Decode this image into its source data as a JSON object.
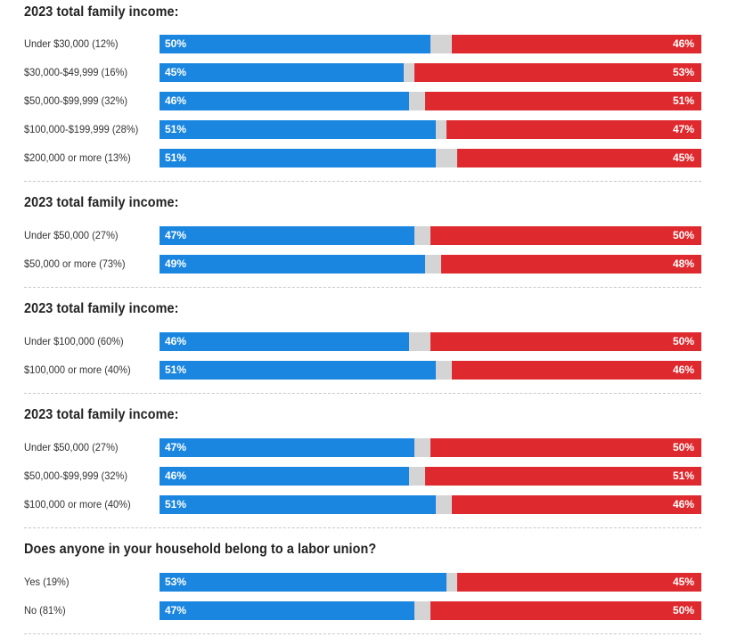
{
  "colors": {
    "dem": "#1a86e0",
    "rep": "#de2a2e",
    "other": "#d4d4d4"
  },
  "chart_data": [
    {
      "type": "bar",
      "title": "2023 total family income:",
      "categories": [
        "Under $30,000 (12%)",
        "$30,000-$49,999 (16%)",
        "$50,000-$99,999 (32%)",
        "$100,000-$199,999 (28%)",
        "$200,000 or more (13%)"
      ],
      "series": [
        {
          "name": "blue",
          "values": [
            50,
            45,
            46,
            51,
            51
          ]
        },
        {
          "name": "red",
          "values": [
            46,
            53,
            51,
            47,
            45
          ]
        }
      ]
    },
    {
      "type": "bar",
      "title": "2023 total family income:",
      "categories": [
        "Under $50,000 (27%)",
        "$50,000 or more (73%)"
      ],
      "series": [
        {
          "name": "blue",
          "values": [
            47,
            49
          ]
        },
        {
          "name": "red",
          "values": [
            50,
            48
          ]
        }
      ]
    },
    {
      "type": "bar",
      "title": "2023 total family income:",
      "categories": [
        "Under $100,000 (60%)",
        "$100,000 or more (40%)"
      ],
      "series": [
        {
          "name": "blue",
          "values": [
            46,
            51
          ]
        },
        {
          "name": "red",
          "values": [
            50,
            46
          ]
        }
      ]
    },
    {
      "type": "bar",
      "title": "2023 total family income:",
      "categories": [
        "Under $50,000 (27%)",
        "$50,000-$99,999 (32%)",
        "$100,000 or more (40%)"
      ],
      "series": [
        {
          "name": "blue",
          "values": [
            47,
            46,
            51
          ]
        },
        {
          "name": "red",
          "values": [
            50,
            51,
            46
          ]
        }
      ]
    },
    {
      "type": "bar",
      "title": "Does anyone in your household belong to a labor union?",
      "categories": [
        "Yes (19%)",
        "No (81%)"
      ],
      "series": [
        {
          "name": "blue",
          "values": [
            53,
            47
          ]
        },
        {
          "name": "red",
          "values": [
            45,
            50
          ]
        }
      ]
    }
  ]
}
